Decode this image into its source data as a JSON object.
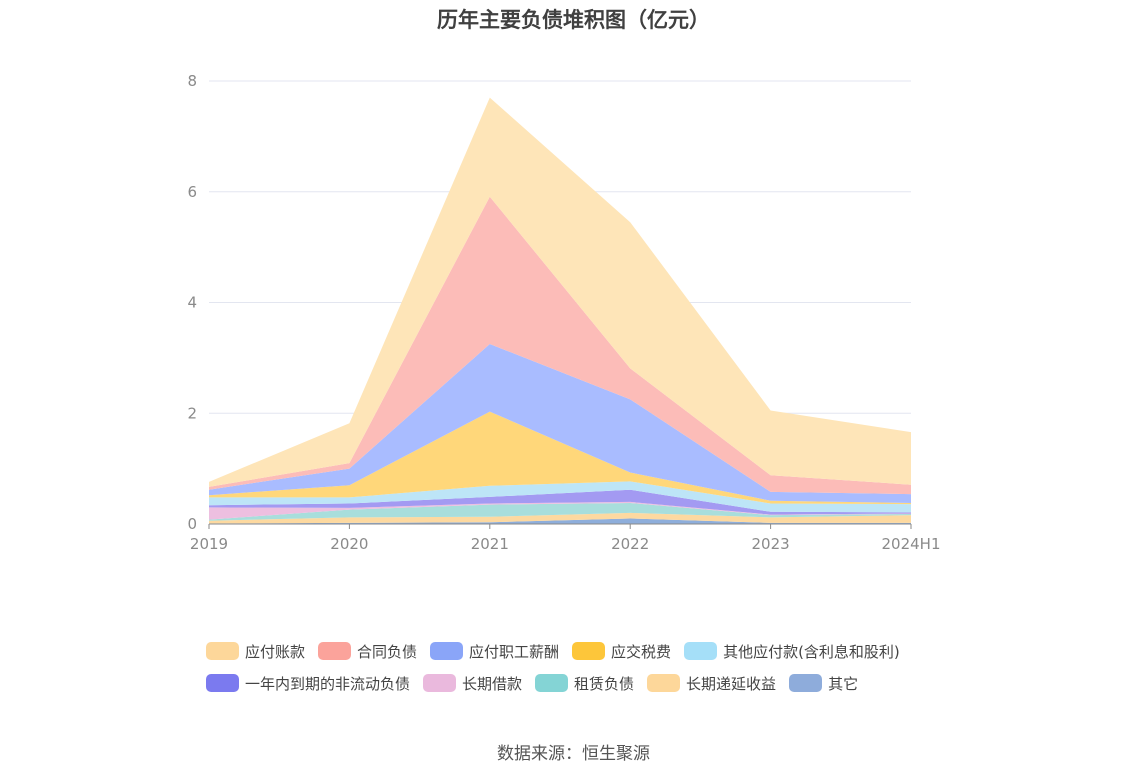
{
  "chart_data": {
    "type": "area",
    "stacked": true,
    "title": "历年主要负债堆积图（亿元）",
    "categories": [
      "2019",
      "2020",
      "2021",
      "2022",
      "2023",
      "2024H1"
    ],
    "ylim": [
      0,
      8
    ],
    "yticks": [
      0,
      2,
      4,
      6,
      8
    ],
    "grid": true,
    "legend_position": "bottom",
    "series": [
      {
        "name": "其它",
        "color": "#8eaedb",
        "values": [
          0.01,
          0.02,
          0.03,
          0.1,
          0.02,
          0.02
        ]
      },
      {
        "name": "长期递延收益",
        "color": "#fdd9a0",
        "values": [
          0.05,
          0.1,
          0.1,
          0.1,
          0.1,
          0.14
        ]
      },
      {
        "name": "租赁负债",
        "color": "#a8dedc",
        "values": [
          0.02,
          0.14,
          0.22,
          0.18,
          0.04,
          0.02
        ]
      },
      {
        "name": "长期借款",
        "color": "#edbfe0",
        "values": [
          0.22,
          0.03,
          0.02,
          0.02,
          0.01,
          0.01
        ]
      },
      {
        "name": "一年内到期的非流动负债",
        "color": "#a39af2",
        "values": [
          0.04,
          0.08,
          0.12,
          0.22,
          0.05,
          0.02
        ]
      },
      {
        "name": "其他应付款(含利息和股利)",
        "color": "#bde5f7",
        "values": [
          0.14,
          0.11,
          0.2,
          0.15,
          0.15,
          0.15
        ]
      },
      {
        "name": "应交税费",
        "color": "#ffd77a",
        "values": [
          0.04,
          0.22,
          1.34,
          0.16,
          0.05,
          0.02
        ]
      },
      {
        "name": "应付职工薪酬",
        "color": "#a9bcff",
        "values": [
          0.1,
          0.3,
          1.22,
          1.32,
          0.16,
          0.16
        ]
      },
      {
        "name": "合同负债",
        "color": "#fcbcb8",
        "values": [
          0.05,
          0.1,
          2.66,
          0.56,
          0.3,
          0.17
        ]
      },
      {
        "name": "应付账款",
        "color": "#fee5b8",
        "values": [
          0.09,
          0.72,
          1.79,
          2.64,
          1.17,
          0.95
        ]
      }
    ],
    "legend": [
      [
        {
          "name": "应付账款",
          "color": "#fdd79a"
        },
        {
          "name": "合同负债",
          "color": "#fba39b"
        },
        {
          "name": "应付职工薪酬",
          "color": "#8aa5f8"
        },
        {
          "name": "应交税费",
          "color": "#fdc63a"
        },
        {
          "name": "其他应付款(含利息和股利)",
          "color": "#a5dff8"
        }
      ],
      [
        {
          "name": "一年内到期的非流动负债",
          "color": "#7b7aef"
        },
        {
          "name": "长期借款",
          "color": "#eab9dd"
        },
        {
          "name": "租赁负债",
          "color": "#84d4d5"
        },
        {
          "name": "长期递延收益",
          "color": "#fdd79a"
        },
        {
          "name": "其它",
          "color": "#8eacdb"
        }
      ]
    ]
  },
  "source": "数据来源：恒生聚源"
}
